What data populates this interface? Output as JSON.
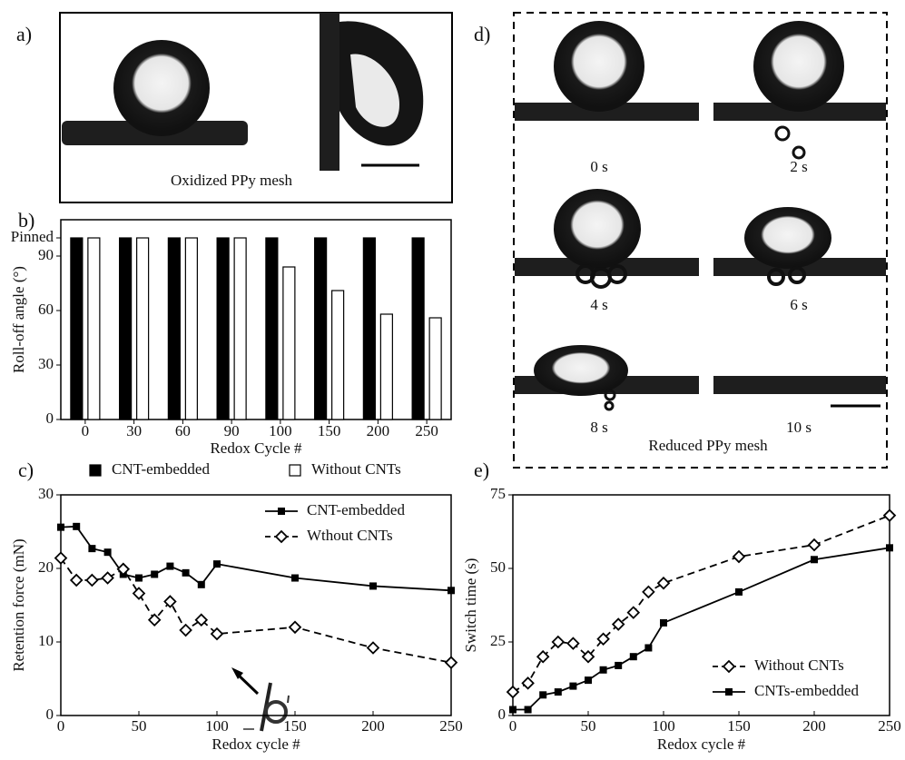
{
  "panels": {
    "a": {
      "label": "a)",
      "caption": "Oxidized PPy mesh"
    },
    "d": {
      "label": "d)",
      "frames": [
        "0 s",
        "2 s",
        "4 s",
        "6 s",
        "8 s",
        "10 s"
      ],
      "caption": "Reduced PPy mesh"
    }
  },
  "chart_data": [
    {
      "type": "bar",
      "panel_label": "b)",
      "x_label": "Redox Cycle #",
      "y_label": "Roll-off angle (°)",
      "categories": [
        "0",
        "30",
        "60",
        "90",
        "100",
        "150",
        "200",
        "250"
      ],
      "series": [
        {
          "name": "CNT-embedded",
          "color": "#000000",
          "values": [
            100,
            100,
            100,
            100,
            100,
            100,
            100,
            100
          ]
        },
        {
          "name": "Without CNTs",
          "color": "#ffffff",
          "values": [
            100,
            100,
            100,
            100,
            84,
            71,
            58,
            56
          ]
        }
      ],
      "ylim": [
        0,
        110
      ],
      "yticks": [
        0,
        30,
        60,
        90,
        {
          "value": 100,
          "label": "Pinned"
        }
      ],
      "legend": "below"
    },
    {
      "type": "line",
      "panel_label": "c)",
      "x_label": "Redox cycle #",
      "y_label": "Retention force (mN)",
      "x": [
        0,
        10,
        20,
        30,
        40,
        50,
        60,
        70,
        80,
        90,
        100,
        150,
        200,
        250
      ],
      "series": [
        {
          "name": "CNT-embedded",
          "color": "#000000",
          "marker": "square",
          "dashed": false,
          "values": [
            25.6,
            25.7,
            22.7,
            22.2,
            19.2,
            18.7,
            19.2,
            20.3,
            19.4,
            17.8,
            20.6,
            18.7,
            17.6,
            17.0
          ]
        },
        {
          "name": "Wthout CNTs",
          "color": "#000000",
          "marker": "diamond",
          "dashed": true,
          "values": [
            21.4,
            18.4,
            18.4,
            18.7,
            19.9,
            16.6,
            13.0,
            15.5,
            11.6,
            13.0,
            11.1,
            12.0,
            9.2,
            7.2
          ]
        }
      ],
      "xlim": [
        0,
        250
      ],
      "xticks": [
        0,
        50,
        100,
        150,
        200,
        250
      ],
      "ylim": [
        0,
        30
      ],
      "yticks": [
        0,
        10,
        20,
        30
      ],
      "legend": "upper right"
    },
    {
      "type": "line",
      "panel_label": "e)",
      "x_label": "Redox cycle #",
      "y_label": "Switch time (s)",
      "x": [
        0,
        10,
        20,
        30,
        40,
        50,
        60,
        70,
        80,
        90,
        100,
        150,
        200,
        250
      ],
      "series": [
        {
          "name": "Without CNTs",
          "color": "#000000",
          "marker": "diamond",
          "dashed": true,
          "values": [
            8,
            11,
            20,
            25,
            24.5,
            20,
            26,
            31,
            35,
            42,
            45,
            54,
            58,
            68
          ]
        },
        {
          "name": "CNTs-embedded",
          "color": "#000000",
          "marker": "square",
          "dashed": false,
          "values": [
            2,
            2,
            7,
            8,
            10,
            12,
            15.5,
            17,
            20,
            23,
            31.5,
            42,
            53,
            57
          ]
        }
      ],
      "xlim": [
        0,
        250
      ],
      "xticks": [
        0,
        50,
        100,
        150,
        200,
        250
      ],
      "ylim": [
        0,
        75
      ],
      "yticks": [
        0,
        25,
        50,
        75
      ],
      "legend": "lower right"
    }
  ]
}
